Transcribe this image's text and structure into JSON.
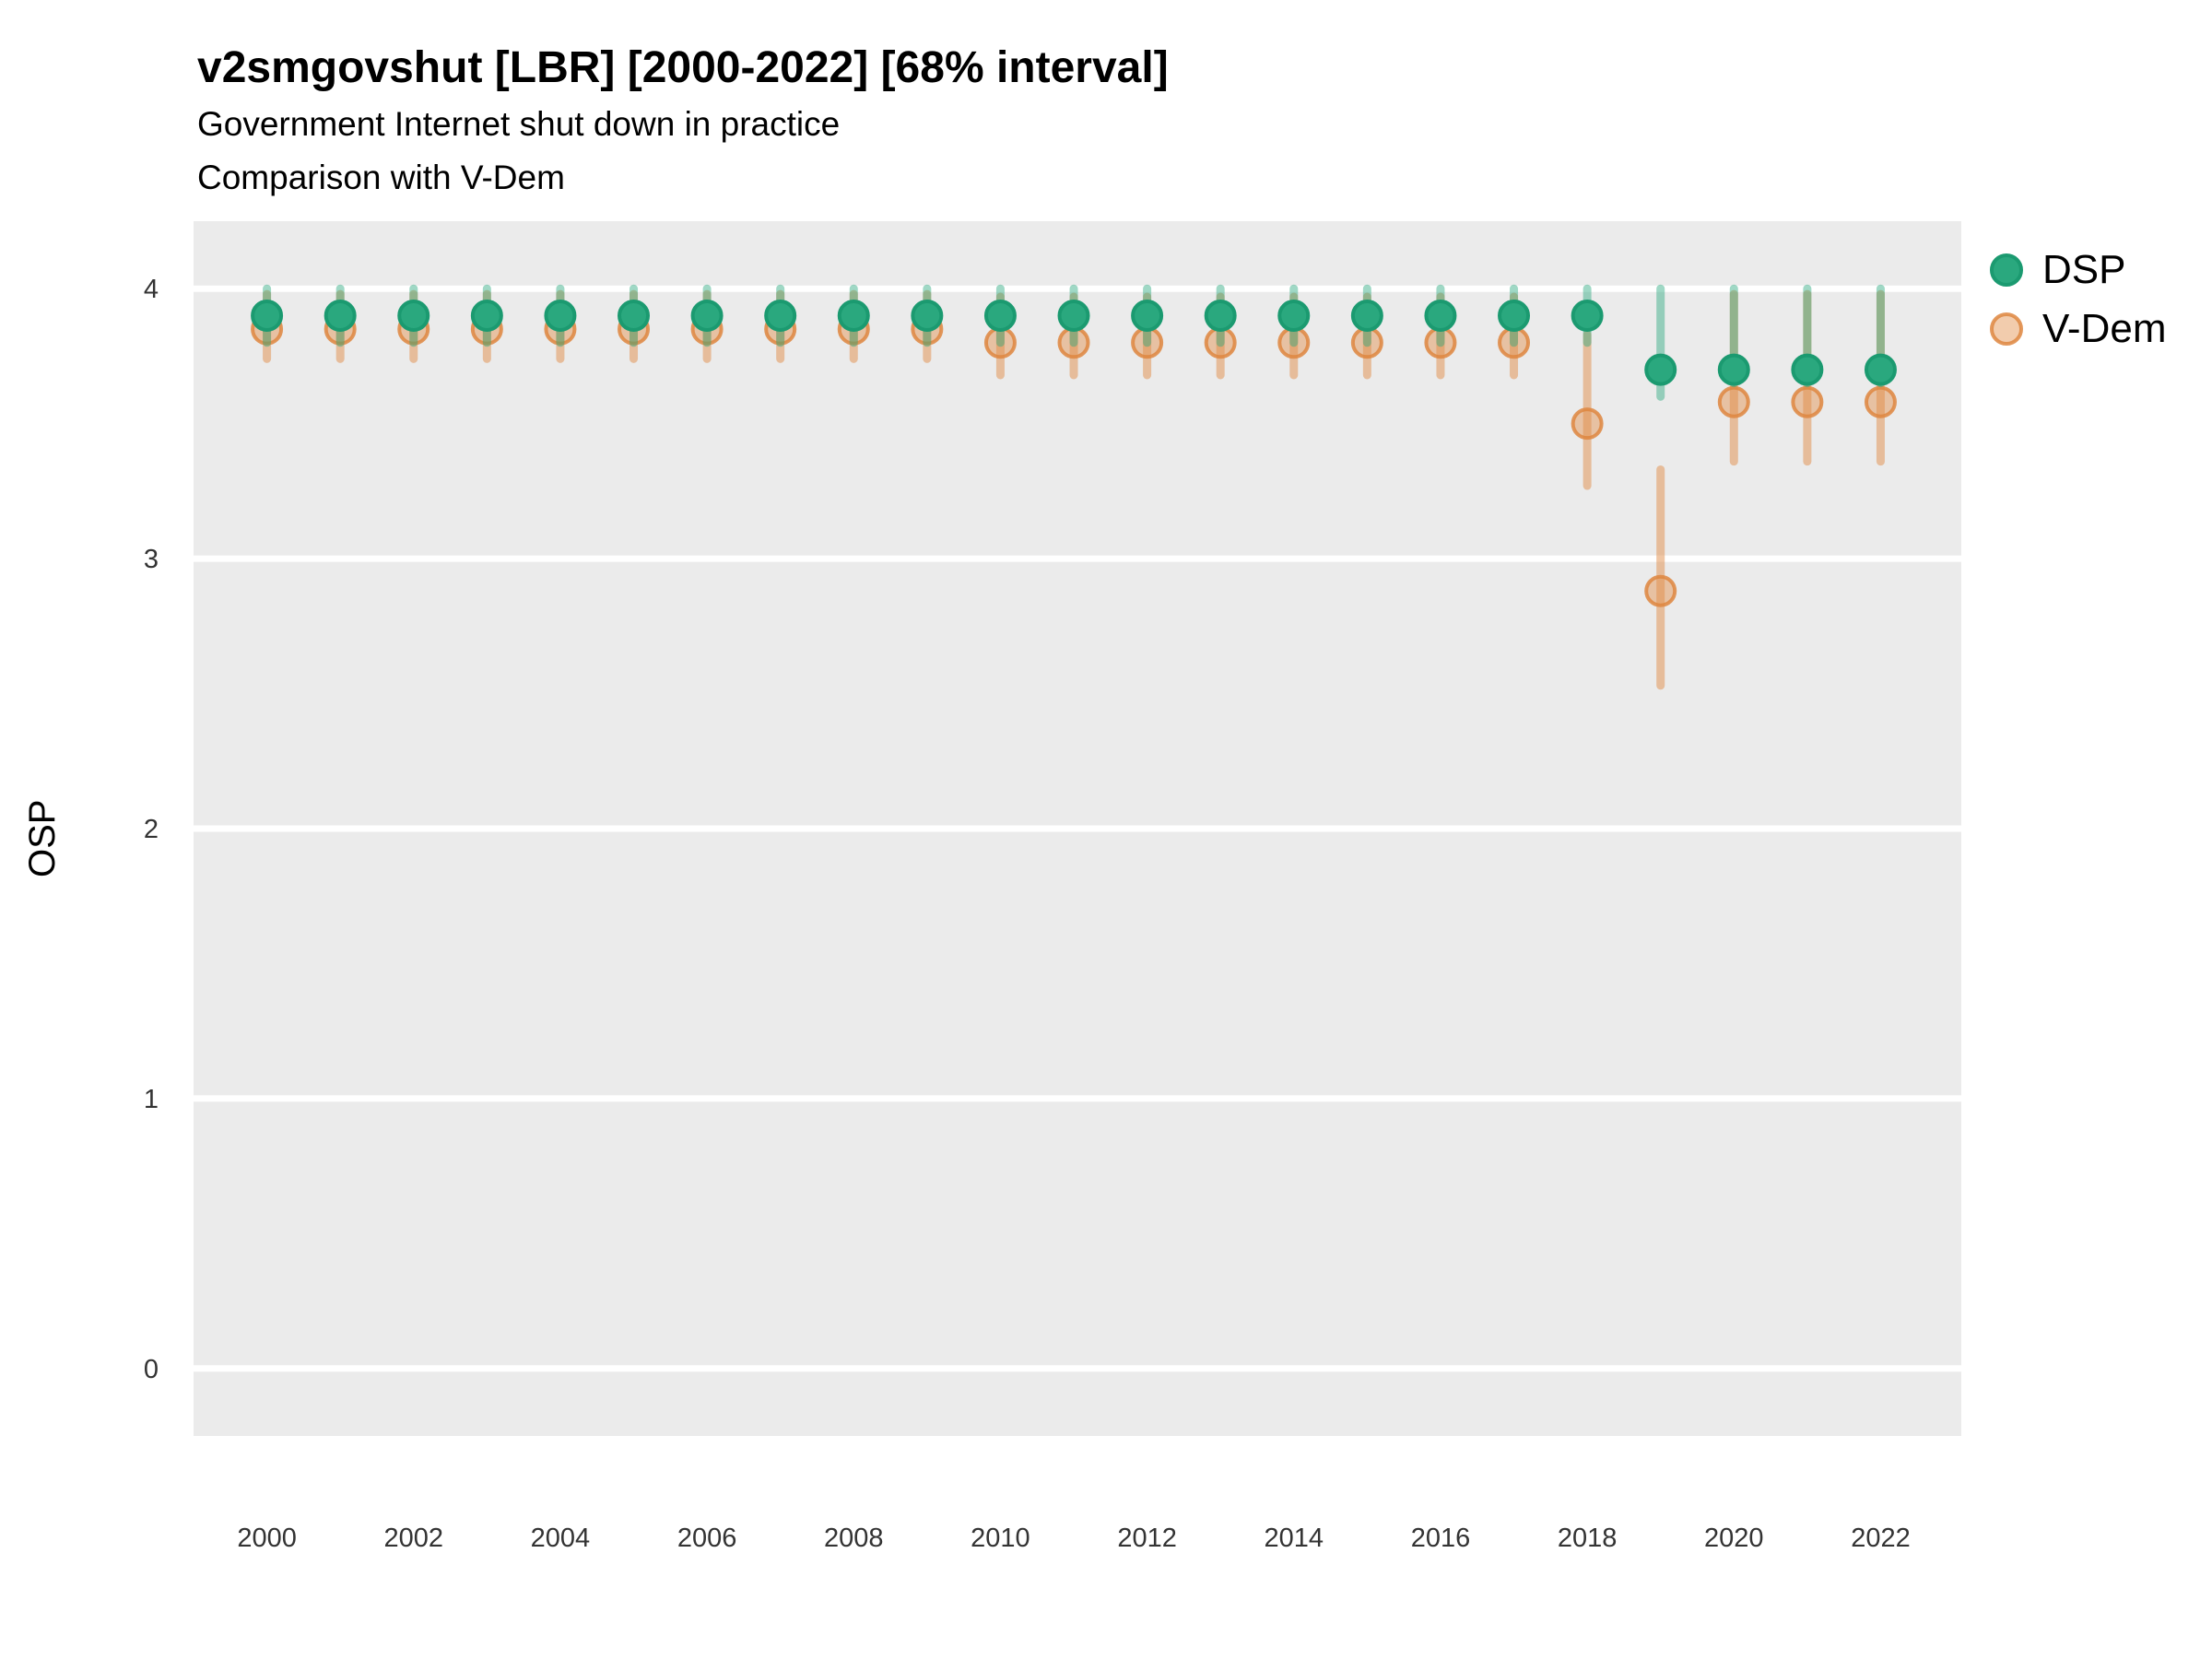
{
  "chart_data": {
    "type": "pointrange",
    "title": "v2smgovshut [LBR] [2000-2022] [68% interval]",
    "subtitle": "Government Internet shut down in practice",
    "subtitle2": "Comparison with V-Dem",
    "interval_label": "68% interval",
    "country_code": "LBR",
    "xlabel": "",
    "ylabel": "OSP",
    "xlim": [
      1999,
      2023.1
    ],
    "ylim": [
      -0.25,
      4.25
    ],
    "y_ticks": [
      4,
      3,
      2,
      1,
      0
    ],
    "x_ticks": [
      2000,
      2002,
      2004,
      2006,
      2008,
      2010,
      2012,
      2014,
      2016,
      2018,
      2020,
      2022
    ],
    "x": [
      2000,
      2001,
      2002,
      2003,
      2004,
      2005,
      2006,
      2007,
      2008,
      2009,
      2010,
      2011,
      2012,
      2013,
      2014,
      2015,
      2016,
      2017,
      2018,
      2019,
      2020,
      2021,
      2022
    ],
    "grid": "horizontal-major-white-on-gray",
    "legend_position": "right",
    "series": [
      {
        "name": "DSP",
        "color": "#2aa87e",
        "point_stroke": "#1b9a70",
        "values": [
          3.9,
          3.9,
          3.9,
          3.9,
          3.9,
          3.9,
          3.9,
          3.9,
          3.9,
          3.9,
          3.9,
          3.9,
          3.9,
          3.9,
          3.9,
          3.9,
          3.9,
          3.9,
          3.9,
          3.7,
          3.7,
          3.7,
          3.7
        ],
        "lower": [
          3.8,
          3.8,
          3.8,
          3.8,
          3.8,
          3.8,
          3.8,
          3.8,
          3.8,
          3.8,
          3.8,
          3.8,
          3.8,
          3.8,
          3.8,
          3.8,
          3.8,
          3.8,
          3.8,
          3.6,
          3.65,
          3.65,
          3.65
        ],
        "upper": [
          4.0,
          4.0,
          4.0,
          4.0,
          4.0,
          4.0,
          4.0,
          4.0,
          4.0,
          4.0,
          4.0,
          4.0,
          4.0,
          4.0,
          4.0,
          4.0,
          4.0,
          4.0,
          4.0,
          4.0,
          4.0,
          4.0,
          4.0
        ]
      },
      {
        "name": "V-Dem",
        "color": "#e28e4a",
        "point_stroke": "#de8640",
        "values": [
          3.85,
          3.85,
          3.85,
          3.85,
          3.85,
          3.85,
          3.85,
          3.85,
          3.85,
          3.85,
          3.8,
          3.8,
          3.8,
          3.8,
          3.8,
          3.8,
          3.8,
          3.8,
          3.5,
          2.88,
          3.58,
          3.58,
          3.58
        ],
        "lower": [
          3.74,
          3.74,
          3.74,
          3.74,
          3.74,
          3.74,
          3.74,
          3.74,
          3.74,
          3.74,
          3.68,
          3.68,
          3.68,
          3.68,
          3.68,
          3.68,
          3.68,
          3.68,
          3.27,
          2.53,
          3.36,
          3.36,
          3.36
        ],
        "upper": [
          3.98,
          3.98,
          3.98,
          3.98,
          3.98,
          3.98,
          3.98,
          3.98,
          3.98,
          3.98,
          3.97,
          3.97,
          3.97,
          3.97,
          3.97,
          3.97,
          3.97,
          3.97,
          3.83,
          3.33,
          3.98,
          3.98,
          3.98
        ]
      }
    ]
  },
  "style": {
    "panel_bg": "#ebebeb",
    "grid_color": "#ffffff",
    "tick_text_color": "#333333",
    "text_color": "#000000"
  }
}
